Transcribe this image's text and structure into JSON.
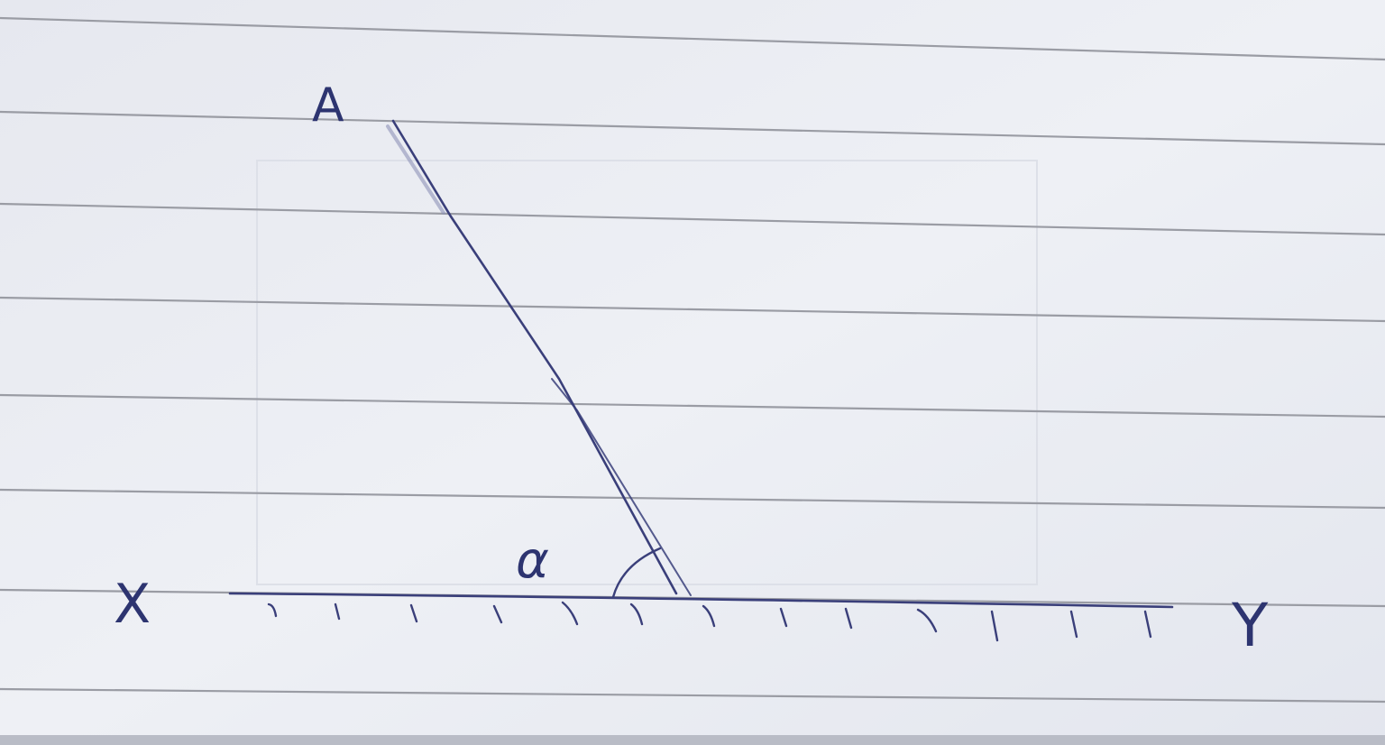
{
  "labels": {
    "point_a": "A",
    "left_end": "X",
    "right_end": "Y",
    "angle": "α"
  },
  "colors": {
    "paper": "#eceef4",
    "rule_line": "#9a9ca4",
    "ink": "#3a3f7a",
    "bottom_strip": "#b9bcc6"
  }
}
